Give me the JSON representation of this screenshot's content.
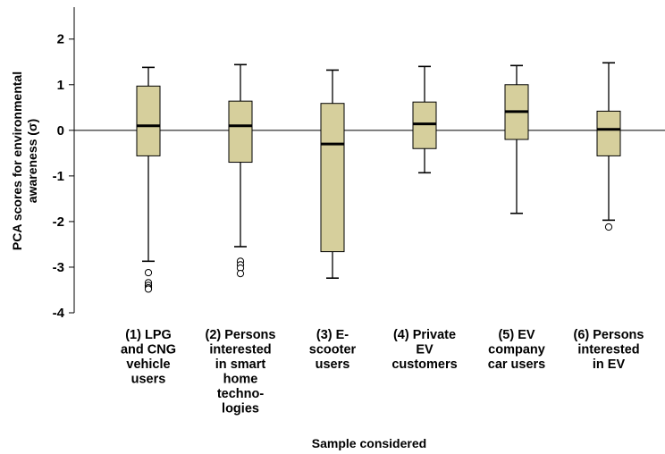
{
  "chart_data": {
    "type": "boxplot",
    "xlabel": "Sample considered",
    "ylabel": "PCA scores for environmental awareness (σ)",
    "ylabel_lines": [
      "PCA scores for environmental",
      "awareness (σ)"
    ],
    "ylim": [
      -4,
      2.7
    ],
    "yticks": [
      -4,
      -3,
      -2,
      -1,
      0,
      1,
      2
    ],
    "reference_line": 0,
    "grid": false,
    "box_color": "#d6cf9c",
    "categories": [
      {
        "label_lines": [
          "(1) LPG",
          "and CNG",
          "vehicle",
          "users"
        ],
        "whisker_low": -2.87,
        "q1": -0.56,
        "median": 0.1,
        "q3": 0.97,
        "whisker_high": 1.38,
        "outliers": [
          -3.12,
          -3.34,
          -3.4,
          -3.45,
          -3.48
        ]
      },
      {
        "label_lines": [
          "(2) Persons",
          "interested",
          "in smart",
          "home",
          "techno-",
          "logies"
        ],
        "whisker_low": -2.55,
        "q1": -0.7,
        "median": 0.1,
        "q3": 0.64,
        "whisker_high": 1.44,
        "outliers": [
          -2.87,
          -2.95,
          -3.02,
          -3.14
        ]
      },
      {
        "label_lines": [
          "(3) E-",
          "scooter",
          "users"
        ],
        "whisker_low": -3.24,
        "q1": -2.66,
        "median": -0.3,
        "q3": 0.59,
        "whisker_high": 1.32,
        "outliers": []
      },
      {
        "label_lines": [
          "(4) Private",
          "EV",
          "customers"
        ],
        "whisker_low": -0.93,
        "q1": -0.4,
        "median": 0.14,
        "q3": 0.62,
        "whisker_high": 1.4,
        "outliers": []
      },
      {
        "label_lines": [
          "(5) EV",
          "company",
          "car users"
        ],
        "whisker_low": -1.82,
        "q1": -0.2,
        "median": 0.41,
        "q3": 1.0,
        "whisker_high": 1.42,
        "outliers": []
      },
      {
        "label_lines": [
          "(6) Persons",
          "interested",
          "in EV"
        ],
        "whisker_low": -1.97,
        "q1": -0.56,
        "median": 0.02,
        "q3": 0.42,
        "whisker_high": 1.48,
        "outliers": [
          -2.12
        ]
      }
    ]
  }
}
